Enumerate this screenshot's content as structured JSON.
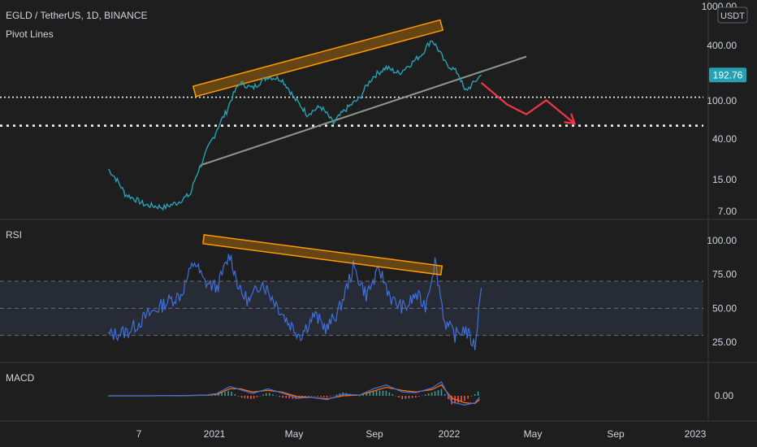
{
  "header": {
    "symbol": "EGLD / TetherUS, 1D, BINANCE",
    "indicator": "Pivot Lines",
    "currency_badge": "USDT",
    "last_price": "192.76"
  },
  "colors": {
    "background": "#1e1e1e",
    "price_line": "#26a1b4",
    "rsi_line": "#3f6fd8",
    "macd_line": "#3f6fd8",
    "signal_line": "#ff6d00",
    "trend_box": "#ff9800",
    "support_line": "#8a9a88",
    "forecast_arrow": "#f23645",
    "last_price_badge": "#26a1b4",
    "hist_up": "#26a69a",
    "hist_down": "#ef5350"
  },
  "chart_data": [
    {
      "type": "line",
      "name": "price",
      "scale": "log",
      "yticks": [
        "1000.00",
        "400.00",
        "100.00",
        "40.00",
        "15.00",
        "7.00"
      ],
      "x": [
        "2020-07-20",
        "2020-08-15",
        "2020-09-15",
        "2020-10-15",
        "2020-11-05",
        "2020-11-25",
        "2020-12-15",
        "2021-01-01",
        "2021-01-20",
        "2021-02-10",
        "2021-03-01",
        "2021-03-25",
        "2021-04-15",
        "2021-05-05",
        "2021-05-25",
        "2021-06-15",
        "2021-07-05",
        "2021-07-25",
        "2021-08-15",
        "2021-09-05",
        "2021-09-25",
        "2021-10-15",
        "2021-11-05",
        "2021-11-20",
        "2021-12-05",
        "2021-12-25",
        "2022-01-15",
        "2022-01-25",
        "2022-02-05",
        "2022-02-20"
      ],
      "y": [
        20,
        11,
        8.5,
        8,
        9,
        11,
        25,
        45,
        80,
        160,
        140,
        185,
        175,
        110,
        75,
        90,
        60,
        85,
        110,
        185,
        230,
        200,
        260,
        320,
        450,
        260,
        200,
        130,
        150,
        192.76
      ],
      "pivot_levels": [
        113,
        57
      ],
      "annotations": [
        {
          "kind": "resistance-channel",
          "from": [
            "2020-12-01",
            130
          ],
          "to": [
            "2021-12-20",
            640
          ]
        },
        {
          "kind": "support-line",
          "from": [
            "2020-12-10",
            22
          ],
          "to": [
            "2022-05-01",
            300
          ]
        },
        {
          "kind": "forecast-arrow",
          "points": [
            [
              "2022-02-20",
              160
            ],
            [
              "2022-04-01",
              95
            ],
            [
              "2022-05-01",
              75
            ],
            [
              "2022-06-01",
              105
            ],
            [
              "2022-07-15",
              60
            ]
          ]
        }
      ]
    },
    {
      "type": "line",
      "name": "RSI",
      "title": "RSI",
      "ylim": [
        15,
        105
      ],
      "yticks": [
        "100.00",
        "75.00",
        "50.00",
        "25.00"
      ],
      "bands": [
        70,
        50,
        30
      ],
      "x": [
        "2020-07-20",
        "2020-08-20",
        "2020-09-20",
        "2020-10-20",
        "2020-11-10",
        "2020-12-01",
        "2020-12-15",
        "2021-01-05",
        "2021-01-25",
        "2021-02-10",
        "2021-02-25",
        "2021-03-15",
        "2021-04-05",
        "2021-04-25",
        "2021-05-15",
        "2021-06-05",
        "2021-06-25",
        "2021-07-15",
        "2021-08-05",
        "2021-08-25",
        "2021-09-15",
        "2021-10-05",
        "2021-10-25",
        "2021-11-10",
        "2021-11-25",
        "2021-12-10",
        "2021-12-25",
        "2022-01-10",
        "2022-01-25",
        "2022-02-10",
        "2022-02-20"
      ],
      "y": [
        30,
        33,
        45,
        55,
        60,
        85,
        70,
        65,
        90,
        62,
        55,
        70,
        55,
        40,
        30,
        45,
        35,
        50,
        80,
        60,
        78,
        55,
        50,
        60,
        52,
        85,
        40,
        30,
        35,
        22,
        65
      ],
      "annotations": [
        {
          "kind": "divergence-channel",
          "from": [
            "2020-12-15",
            101
          ],
          "to": [
            "2021-12-20",
            78
          ]
        }
      ]
    },
    {
      "type": "line",
      "name": "MACD",
      "title": "MACD",
      "yticks": [
        "0.00"
      ],
      "x": [
        "2020-07-20",
        "2020-09-20",
        "2020-11-20",
        "2020-12-20",
        "2021-01-05",
        "2021-01-25",
        "2021-02-10",
        "2021-03-01",
        "2021-03-25",
        "2021-04-15",
        "2021-05-10",
        "2021-06-01",
        "2021-06-25",
        "2021-07-20",
        "2021-08-15",
        "2021-09-05",
        "2021-09-25",
        "2021-10-20",
        "2021-11-10",
        "2021-12-05",
        "2021-12-20",
        "2022-01-05",
        "2022-01-25",
        "2022-02-10",
        "2022-02-20"
      ],
      "series": [
        {
          "name": "MACD",
          "values": [
            0,
            0,
            0.5,
            1,
            3,
            12,
            8,
            3,
            9,
            4,
            -3,
            -2,
            -5,
            2,
            1,
            9,
            14,
            5,
            4,
            10,
            18,
            -8,
            -12,
            -9,
            1
          ]
        },
        {
          "name": "Signal",
          "values": [
            0,
            0,
            0.3,
            0.8,
            2,
            9,
            9,
            5,
            7,
            5,
            -1,
            -2,
            -4,
            0,
            1,
            6,
            11,
            7,
            5,
            8,
            14,
            -3,
            -9,
            -10,
            -3
          ]
        }
      ]
    }
  ],
  "time_axis": {
    "labels": [
      "7",
      "2021",
      "May",
      "Sep",
      "2022",
      "May",
      "Sep",
      "2023"
    ]
  }
}
